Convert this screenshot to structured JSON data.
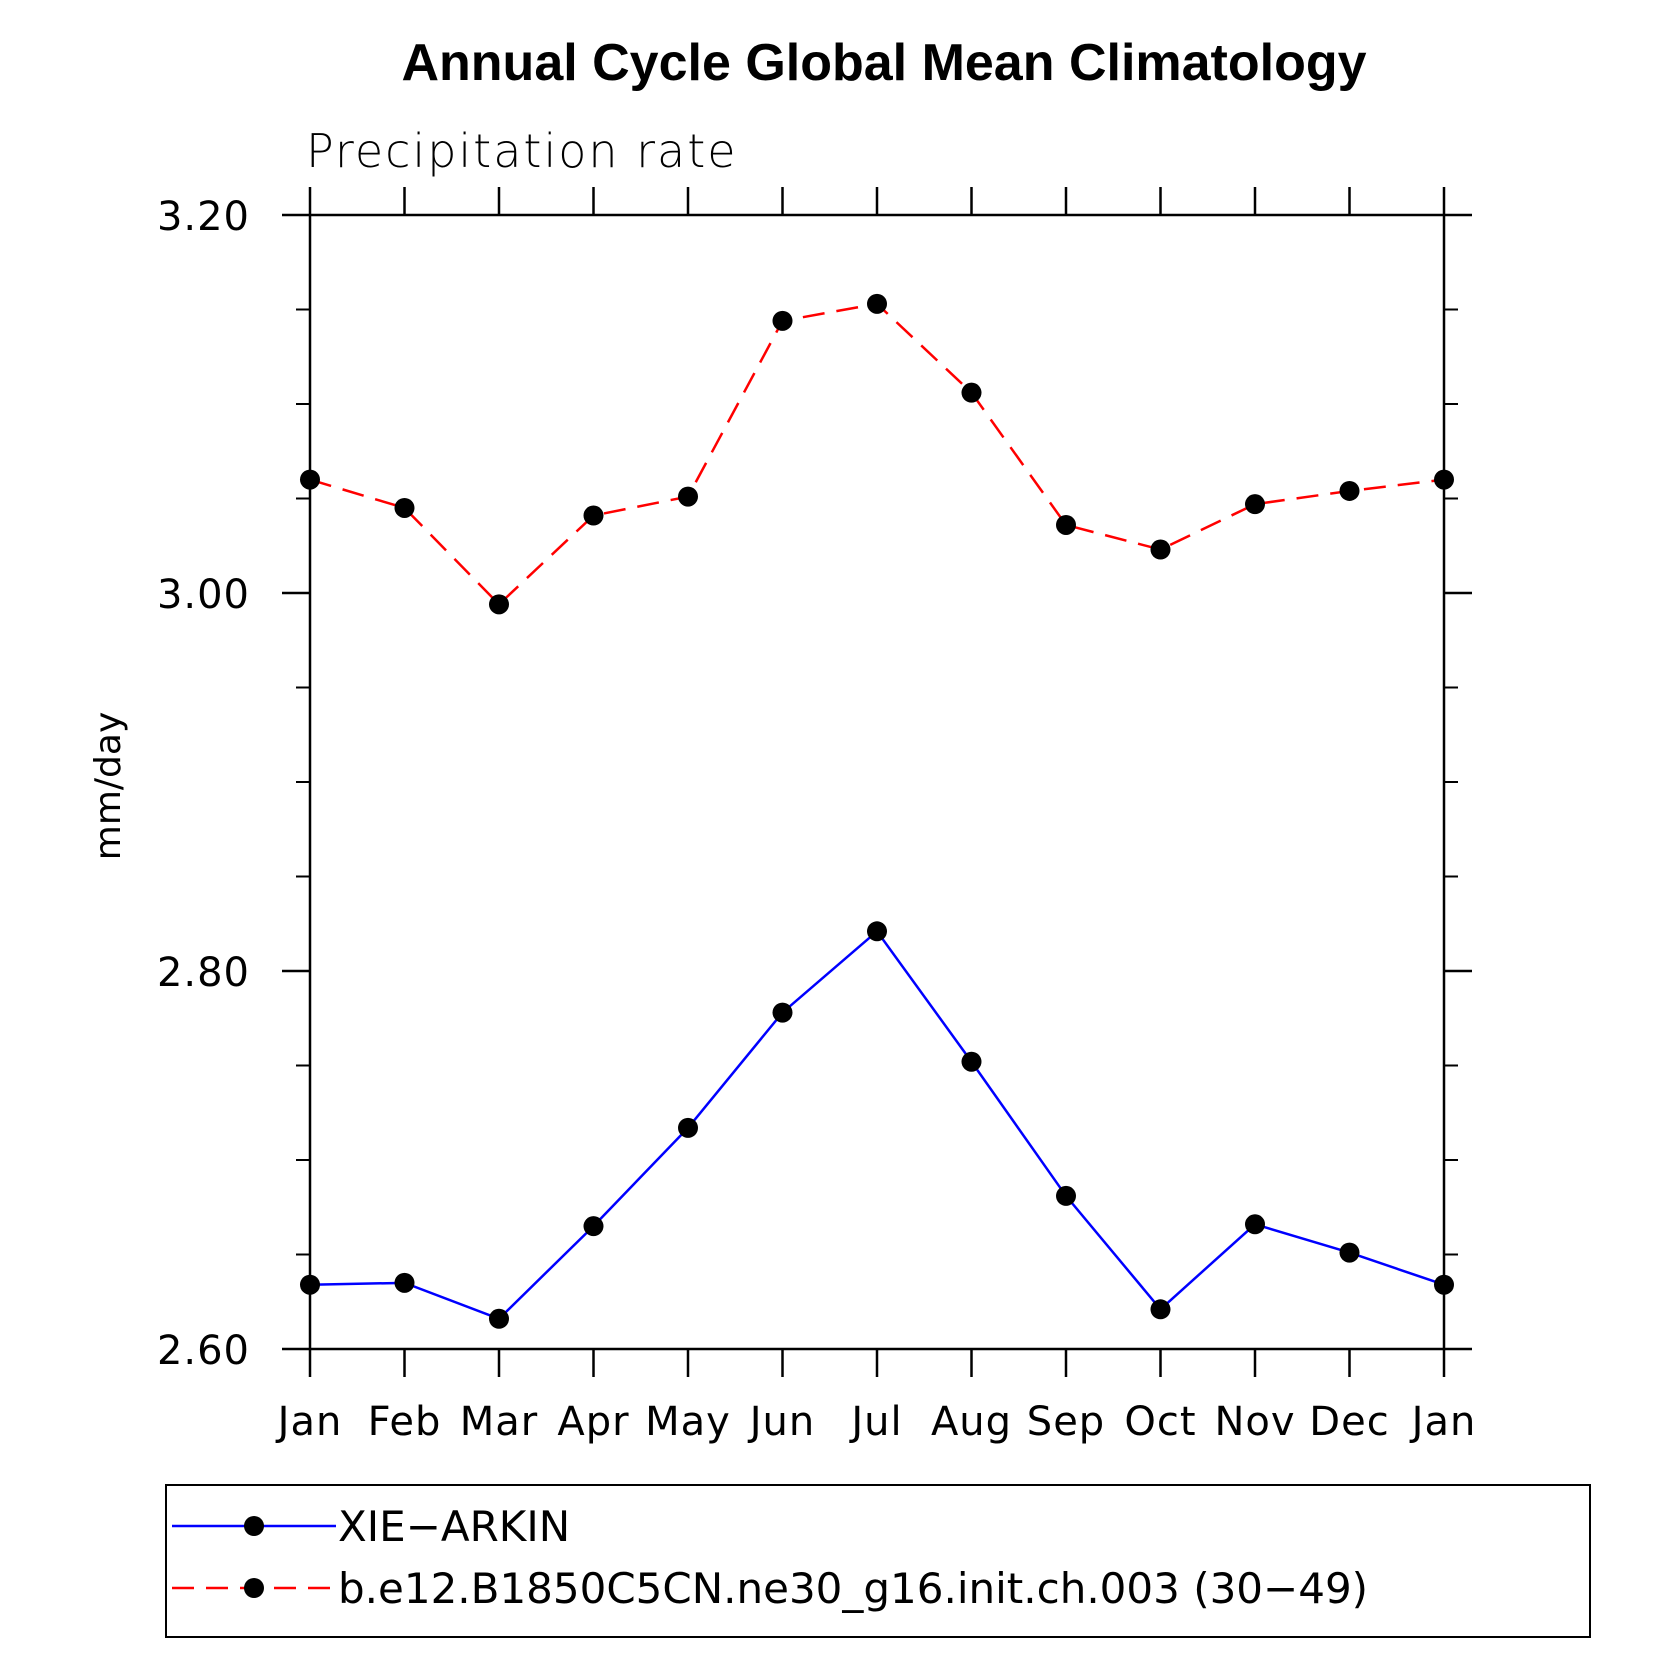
{
  "chart_data": {
    "type": "line",
    "title": "Annual Cycle Global Mean Climatology",
    "subtitle": "Precipitation rate",
    "xlabel": "",
    "ylabel": "mm/day",
    "categories": [
      "Jan",
      "Feb",
      "Mar",
      "Apr",
      "May",
      "Jun",
      "Jul",
      "Aug",
      "Sep",
      "Oct",
      "Nov",
      "Dec",
      "Jan"
    ],
    "ylim": [
      2.6,
      3.2
    ],
    "yticks": [
      "2.60",
      "2.80",
      "3.00",
      "3.20"
    ],
    "yminor_step": 0.05,
    "grid": false,
    "legend_position": "bottom",
    "series": [
      {
        "name": "XIE−ARKIN",
        "color": "#0000ff",
        "dash": "solid",
        "values": [
          2.634,
          2.635,
          2.616,
          2.665,
          2.717,
          2.778,
          2.821,
          2.752,
          2.681,
          2.621,
          2.666,
          2.651,
          2.634
        ]
      },
      {
        "name": "b.e12.B1850C5CN.ne30_g16.init.ch.003 (30−49)",
        "color": "#ff0000",
        "dash": "dashed",
        "values": [
          3.06,
          3.045,
          2.994,
          3.041,
          3.051,
          3.144,
          3.153,
          3.106,
          3.036,
          3.023,
          3.047,
          3.054,
          3.06
        ]
      }
    ]
  }
}
